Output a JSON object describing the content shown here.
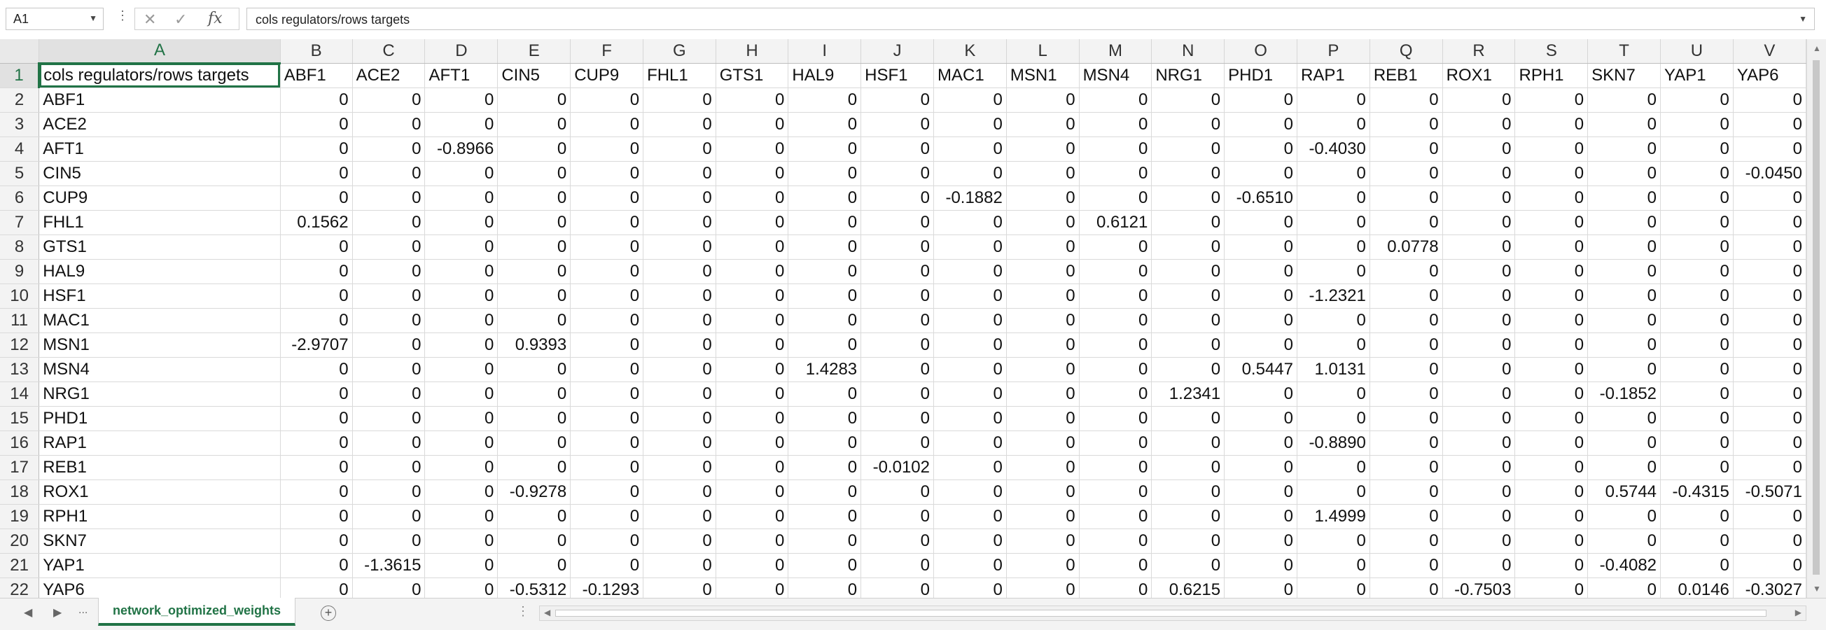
{
  "formula_bar": {
    "name_box": "A1",
    "formula": "cols regulators/rows targets",
    "cancel_icon": "✕",
    "enter_icon": "✓",
    "fx_label": "fx",
    "dots": "⋮"
  },
  "columns": [
    "A",
    "B",
    "C",
    "D",
    "E",
    "F",
    "G",
    "H",
    "I",
    "J",
    "K",
    "L",
    "M",
    "N",
    "O",
    "P",
    "Q",
    "R",
    "S",
    "T",
    "U",
    "V"
  ],
  "rows": [
    [
      "cols regulators/rows targets",
      "ABF1",
      "ACE2",
      "AFT1",
      "CIN5",
      "CUP9",
      "FHL1",
      "GTS1",
      "HAL9",
      "HSF1",
      "MAC1",
      "MSN1",
      "MSN4",
      "NRG1",
      "PHD1",
      "RAP1",
      "REB1",
      "ROX1",
      "RPH1",
      "SKN7",
      "YAP1",
      "YAP6"
    ],
    [
      "ABF1",
      "0",
      "0",
      "0",
      "0",
      "0",
      "0",
      "0",
      "0",
      "0",
      "0",
      "0",
      "0",
      "0",
      "0",
      "0",
      "0",
      "0",
      "0",
      "0",
      "0",
      "0"
    ],
    [
      "ACE2",
      "0",
      "0",
      "0",
      "0",
      "0",
      "0",
      "0",
      "0",
      "0",
      "0",
      "0",
      "0",
      "0",
      "0",
      "0",
      "0",
      "0",
      "0",
      "0",
      "0",
      "0"
    ],
    [
      "AFT1",
      "0",
      "0",
      "-0.8966",
      "0",
      "0",
      "0",
      "0",
      "0",
      "0",
      "0",
      "0",
      "0",
      "0",
      "0",
      "-0.4030",
      "0",
      "0",
      "0",
      "0",
      "0",
      "0"
    ],
    [
      "CIN5",
      "0",
      "0",
      "0",
      "0",
      "0",
      "0",
      "0",
      "0",
      "0",
      "0",
      "0",
      "0",
      "0",
      "0",
      "0",
      "0",
      "0",
      "0",
      "0",
      "0",
      "-0.0450"
    ],
    [
      "CUP9",
      "0",
      "0",
      "0",
      "0",
      "0",
      "0",
      "0",
      "0",
      "0",
      "-0.1882",
      "0",
      "0",
      "0",
      "-0.6510",
      "0",
      "0",
      "0",
      "0",
      "0",
      "0",
      "0"
    ],
    [
      "FHL1",
      "0.1562",
      "0",
      "0",
      "0",
      "0",
      "0",
      "0",
      "0",
      "0",
      "0",
      "0",
      "0.6121",
      "0",
      "0",
      "0",
      "0",
      "0",
      "0",
      "0",
      "0",
      "0"
    ],
    [
      "GTS1",
      "0",
      "0",
      "0",
      "0",
      "0",
      "0",
      "0",
      "0",
      "0",
      "0",
      "0",
      "0",
      "0",
      "0",
      "0",
      "0.0778",
      "0",
      "0",
      "0",
      "0",
      "0"
    ],
    [
      "HAL9",
      "0",
      "0",
      "0",
      "0",
      "0",
      "0",
      "0",
      "0",
      "0",
      "0",
      "0",
      "0",
      "0",
      "0",
      "0",
      "0",
      "0",
      "0",
      "0",
      "0",
      "0"
    ],
    [
      "HSF1",
      "0",
      "0",
      "0",
      "0",
      "0",
      "0",
      "0",
      "0",
      "0",
      "0",
      "0",
      "0",
      "0",
      "0",
      "-1.2321",
      "0",
      "0",
      "0",
      "0",
      "0",
      "0"
    ],
    [
      "MAC1",
      "0",
      "0",
      "0",
      "0",
      "0",
      "0",
      "0",
      "0",
      "0",
      "0",
      "0",
      "0",
      "0",
      "0",
      "0",
      "0",
      "0",
      "0",
      "0",
      "0",
      "0"
    ],
    [
      "MSN1",
      "-2.9707",
      "0",
      "0",
      "0.9393",
      "0",
      "0",
      "0",
      "0",
      "0",
      "0",
      "0",
      "0",
      "0",
      "0",
      "0",
      "0",
      "0",
      "0",
      "0",
      "0",
      "0"
    ],
    [
      "MSN4",
      "0",
      "0",
      "0",
      "0",
      "0",
      "0",
      "0",
      "1.4283",
      "0",
      "0",
      "0",
      "0",
      "0",
      "0.5447",
      "1.0131",
      "0",
      "0",
      "0",
      "0",
      "0",
      "0"
    ],
    [
      "NRG1",
      "0",
      "0",
      "0",
      "0",
      "0",
      "0",
      "0",
      "0",
      "0",
      "0",
      "0",
      "0",
      "1.2341",
      "0",
      "0",
      "0",
      "0",
      "0",
      "-0.1852",
      "0",
      "0"
    ],
    [
      "PHD1",
      "0",
      "0",
      "0",
      "0",
      "0",
      "0",
      "0",
      "0",
      "0",
      "0",
      "0",
      "0",
      "0",
      "0",
      "0",
      "0",
      "0",
      "0",
      "0",
      "0",
      "0"
    ],
    [
      "RAP1",
      "0",
      "0",
      "0",
      "0",
      "0",
      "0",
      "0",
      "0",
      "0",
      "0",
      "0",
      "0",
      "0",
      "0",
      "-0.8890",
      "0",
      "0",
      "0",
      "0",
      "0",
      "0"
    ],
    [
      "REB1",
      "0",
      "0",
      "0",
      "0",
      "0",
      "0",
      "0",
      "0",
      "-0.0102",
      "0",
      "0",
      "0",
      "0",
      "0",
      "0",
      "0",
      "0",
      "0",
      "0",
      "0",
      "0"
    ],
    [
      "ROX1",
      "0",
      "0",
      "0",
      "-0.9278",
      "0",
      "0",
      "0",
      "0",
      "0",
      "0",
      "0",
      "0",
      "0",
      "0",
      "0",
      "0",
      "0",
      "0",
      "0.5744",
      "-0.4315",
      "-0.5071"
    ],
    [
      "RPH1",
      "0",
      "0",
      "0",
      "0",
      "0",
      "0",
      "0",
      "0",
      "0",
      "0",
      "0",
      "0",
      "0",
      "0",
      "1.4999",
      "0",
      "0",
      "0",
      "0",
      "0",
      "0"
    ],
    [
      "SKN7",
      "0",
      "0",
      "0",
      "0",
      "0",
      "0",
      "0",
      "0",
      "0",
      "0",
      "0",
      "0",
      "0",
      "0",
      "0",
      "0",
      "0",
      "0",
      "0",
      "0",
      "0"
    ],
    [
      "YAP1",
      "0",
      "-1.3615",
      "0",
      "0",
      "0",
      "0",
      "0",
      "0",
      "0",
      "0",
      "0",
      "0",
      "0",
      "0",
      "0",
      "0",
      "0",
      "0",
      "-0.4082",
      "0",
      "0"
    ],
    [
      "YAP6",
      "0",
      "0",
      "0",
      "-0.5312",
      "-0.1293",
      "0",
      "0",
      "0",
      "0",
      "0",
      "0",
      "0",
      "0.6215",
      "0",
      "0",
      "0",
      "-0.7503",
      "0",
      "0",
      "0.0146",
      "-0.3027"
    ]
  ],
  "sheet_tabs": {
    "active_label": "network_optimized_weights",
    "prev_icon": "◀",
    "next_icon": "▶",
    "more": "...",
    "add_icon": "+",
    "split": "⋮"
  },
  "colors": {
    "accent": "#217346",
    "header_bg": "#f3f3f3",
    "gridline": "#dadada"
  }
}
